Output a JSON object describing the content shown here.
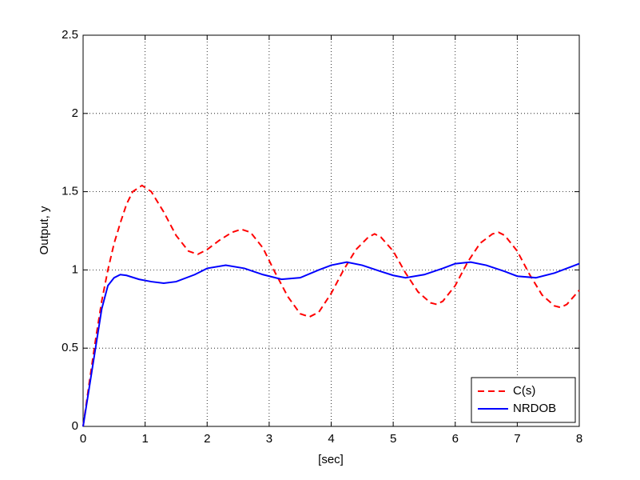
{
  "chart_data": {
    "type": "line",
    "xlabel": "[sec]",
    "ylabel": "Output, y",
    "xlim": [
      0,
      8
    ],
    "xticks": [
      0,
      1,
      2,
      3,
      4,
      5,
      6,
      7,
      8
    ],
    "ylim": [
      0,
      2.5
    ],
    "yticks": [
      0,
      0.5,
      1,
      1.5,
      2,
      2.5
    ],
    "grid": true,
    "legend": "lower right",
    "series": [
      {
        "name": "C(s)",
        "color": "#ff0000",
        "dash": true,
        "x": [
          0,
          0.1,
          0.2,
          0.3,
          0.4,
          0.5,
          0.6,
          0.7,
          0.8,
          0.95,
          1.1,
          1.3,
          1.5,
          1.7,
          1.85,
          2.0,
          2.2,
          2.4,
          2.55,
          2.7,
          2.9,
          3.1,
          3.3,
          3.5,
          3.65,
          3.8,
          4.0,
          4.2,
          4.4,
          4.6,
          4.7,
          4.8,
          5.0,
          5.2,
          5.4,
          5.6,
          5.7,
          5.8,
          6.0,
          6.2,
          6.4,
          6.6,
          6.7,
          6.8,
          7.0,
          7.2,
          7.4,
          7.6,
          7.7,
          7.8,
          8.0
        ],
        "values": [
          0,
          0.28,
          0.55,
          0.8,
          1.0,
          1.17,
          1.3,
          1.42,
          1.5,
          1.54,
          1.5,
          1.37,
          1.22,
          1.12,
          1.1,
          1.13,
          1.19,
          1.24,
          1.26,
          1.24,
          1.14,
          0.98,
          0.83,
          0.72,
          0.7,
          0.73,
          0.85,
          1.0,
          1.13,
          1.21,
          1.23,
          1.21,
          1.12,
          0.98,
          0.86,
          0.79,
          0.78,
          0.8,
          0.9,
          1.05,
          1.17,
          1.23,
          1.24,
          1.22,
          1.12,
          0.97,
          0.84,
          0.77,
          0.76,
          0.78,
          0.87
        ]
      },
      {
        "name": "NRDOB",
        "color": "#0000ff",
        "dash": false,
        "x": [
          0,
          0.1,
          0.2,
          0.3,
          0.4,
          0.5,
          0.6,
          0.7,
          0.9,
          1.1,
          1.3,
          1.5,
          1.8,
          2.0,
          2.3,
          2.6,
          2.9,
          3.2,
          3.5,
          3.8,
          4.0,
          4.25,
          4.5,
          4.8,
          5.0,
          5.2,
          5.5,
          5.8,
          6.0,
          6.25,
          6.5,
          6.8,
          7.0,
          7.3,
          7.6,
          7.8,
          8.0
        ],
        "values": [
          0,
          0.25,
          0.5,
          0.75,
          0.9,
          0.95,
          0.97,
          0.965,
          0.94,
          0.925,
          0.915,
          0.925,
          0.97,
          1.01,
          1.03,
          1.01,
          0.97,
          0.94,
          0.95,
          1.0,
          1.03,
          1.05,
          1.03,
          0.99,
          0.965,
          0.95,
          0.97,
          1.01,
          1.04,
          1.05,
          1.03,
          0.99,
          0.96,
          0.95,
          0.98,
          1.01,
          1.04
        ]
      }
    ]
  }
}
